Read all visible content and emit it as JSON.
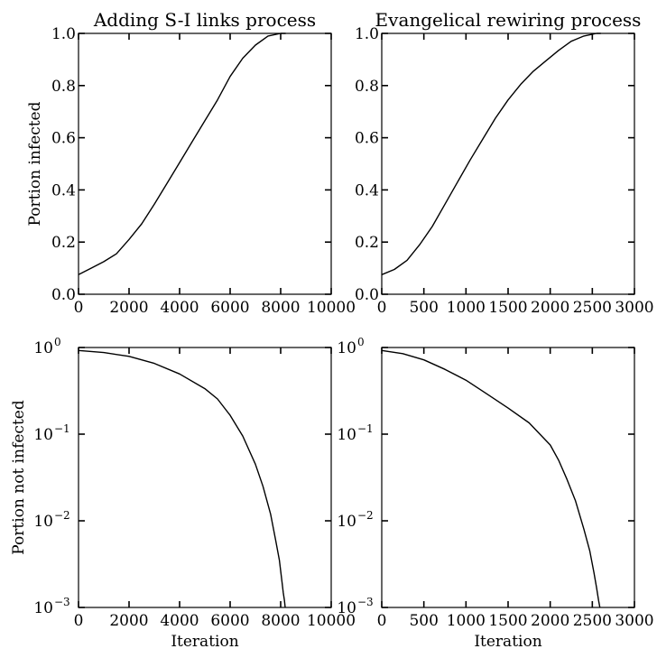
{
  "chart_data": [
    {
      "type": "line",
      "title": "Adding S-I links process",
      "xlabel": "",
      "ylabel": "Portion infected",
      "xlim": [
        0,
        10000
      ],
      "ylim": [
        0,
        1
      ],
      "yscale": "linear",
      "grid": false,
      "x_ticks": [
        0,
        2000,
        4000,
        6000,
        8000,
        10000
      ],
      "x_tick_labels": [
        "0",
        "2000",
        "4000",
        "6000",
        "8000",
        "10000"
      ],
      "y_ticks": [
        0,
        0.2,
        0.4,
        0.6,
        0.8,
        1.0
      ],
      "y_tick_labels": [
        "0.0",
        "0.2",
        "0.4",
        "0.6",
        "0.8",
        "1.0"
      ],
      "series": [
        {
          "x": [
            0,
            500,
            1000,
            1500,
            2000,
            2500,
            3000,
            3500,
            4000,
            4500,
            5000,
            5500,
            6000,
            6500,
            7000,
            7500,
            8000,
            8200
          ],
          "y": [
            0.075,
            0.1,
            0.125,
            0.155,
            0.21,
            0.27,
            0.345,
            0.425,
            0.505,
            0.585,
            0.665,
            0.745,
            0.835,
            0.905,
            0.955,
            0.99,
            1.0,
            1.0
          ]
        }
      ]
    },
    {
      "type": "line",
      "title": "Evangelical rewiring process",
      "xlabel": "",
      "ylabel": "",
      "xlim": [
        0,
        3000
      ],
      "ylim": [
        0,
        1
      ],
      "yscale": "linear",
      "grid": false,
      "x_ticks": [
        0,
        500,
        1000,
        1500,
        2000,
        2500,
        3000
      ],
      "x_tick_labels": [
        "0",
        "500",
        "1000",
        "1500",
        "2000",
        "2500",
        "3000"
      ],
      "y_ticks": [
        0,
        0.2,
        0.4,
        0.6,
        0.8,
        1.0
      ],
      "y_tick_labels": [
        "0.0",
        "0.2",
        "0.4",
        "0.6",
        "0.8",
        "1.0"
      ],
      "series": [
        {
          "x": [
            0,
            150,
            300,
            450,
            600,
            750,
            900,
            1050,
            1200,
            1350,
            1500,
            1650,
            1800,
            1950,
            2100,
            2250,
            2400,
            2550,
            2600
          ],
          "y": [
            0.075,
            0.095,
            0.13,
            0.19,
            0.26,
            0.345,
            0.43,
            0.515,
            0.595,
            0.675,
            0.745,
            0.805,
            0.855,
            0.895,
            0.935,
            0.97,
            0.99,
            1.0,
            1.0
          ]
        }
      ]
    },
    {
      "type": "line",
      "title": "",
      "xlabel": "Iteration",
      "ylabel": "Portion not infected",
      "xlim": [
        0,
        10000
      ],
      "ylim": [
        0.001,
        1
      ],
      "yscale": "log",
      "grid": false,
      "x_ticks": [
        0,
        2000,
        4000,
        6000,
        8000,
        10000
      ],
      "x_tick_labels": [
        "0",
        "2000",
        "4000",
        "6000",
        "8000",
        "10000"
      ],
      "y_ticks": [
        1,
        0.1,
        0.01,
        0.001
      ],
      "y_tick_base": [
        "10",
        "10",
        "10",
        "10"
      ],
      "y_tick_exp": [
        "0",
        "−1",
        "−2",
        "−3"
      ],
      "series": [
        {
          "x": [
            0,
            1000,
            2000,
            3000,
            4000,
            5000,
            5500,
            6000,
            6500,
            7000,
            7300,
            7600,
            7800,
            7950,
            8050,
            8100,
            8150,
            8180
          ],
          "y": [
            0.925,
            0.875,
            0.79,
            0.655,
            0.495,
            0.335,
            0.255,
            0.165,
            0.095,
            0.045,
            0.025,
            0.012,
            0.006,
            0.0035,
            0.002,
            0.0015,
            0.0012,
            0.001
          ]
        }
      ]
    },
    {
      "type": "line",
      "title": "",
      "xlabel": "Iteration",
      "ylabel": "",
      "xlim": [
        0,
        3000
      ],
      "ylim": [
        0.001,
        1
      ],
      "yscale": "log",
      "grid": false,
      "x_ticks": [
        0,
        500,
        1000,
        1500,
        2000,
        2500,
        3000
      ],
      "x_tick_labels": [
        "0",
        "500",
        "1000",
        "1500",
        "2000",
        "2500",
        "3000"
      ],
      "y_ticks": [
        1,
        0.1,
        0.01,
        0.001
      ],
      "y_tick_base": [
        "10",
        "10",
        "10",
        "10"
      ],
      "y_tick_exp": [
        "0",
        "−1",
        "−2",
        "−3"
      ],
      "series": [
        {
          "x": [
            0,
            250,
            500,
            750,
            1000,
            1250,
            1500,
            1750,
            2000,
            2100,
            2200,
            2300,
            2400,
            2470,
            2520,
            2550,
            2575,
            2590
          ],
          "y": [
            0.925,
            0.85,
            0.72,
            0.56,
            0.42,
            0.29,
            0.2,
            0.135,
            0.075,
            0.05,
            0.03,
            0.017,
            0.008,
            0.0045,
            0.0025,
            0.0017,
            0.0012,
            0.001
          ]
        }
      ]
    }
  ]
}
